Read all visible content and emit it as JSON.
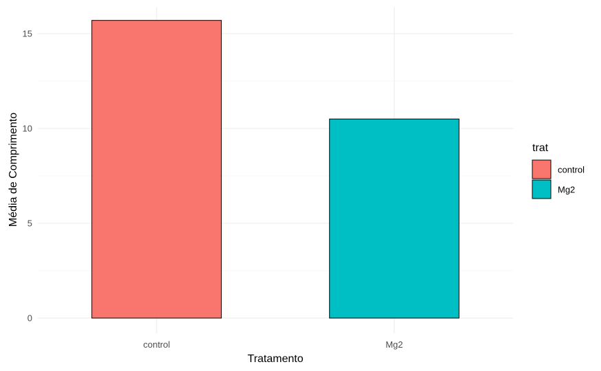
{
  "chart_data": {
    "type": "bar",
    "categories": [
      "control",
      "Mg2"
    ],
    "values": [
      15.7,
      10.5
    ],
    "colors": [
      "#F8766D",
      "#00BFC4"
    ],
    "xlabel": "Tratamento",
    "ylabel": "Média de Comprimento",
    "ylim": [
      0,
      16
    ],
    "yticks": [
      0,
      5,
      10,
      15
    ],
    "ytick_labels": [
      "0",
      "5",
      "10",
      "15"
    ],
    "grid": true,
    "legend": {
      "title": "trat",
      "entries": [
        "control",
        "Mg2"
      ],
      "placement": "right"
    }
  }
}
